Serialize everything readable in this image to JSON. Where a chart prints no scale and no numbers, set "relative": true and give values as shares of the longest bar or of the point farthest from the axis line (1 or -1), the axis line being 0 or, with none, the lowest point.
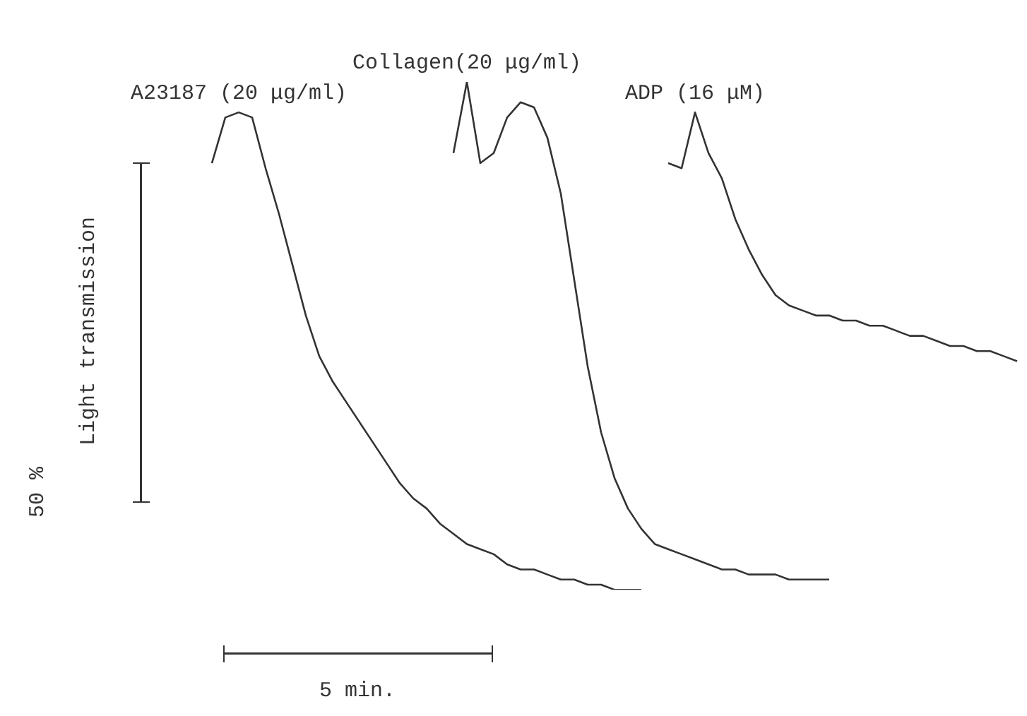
{
  "chart_data": {
    "type": "line",
    "ylabel": "Light transmission",
    "annotations": [
      "50 %",
      "5 min."
    ],
    "relative": true,
    "grid": false,
    "legend": false,
    "marker": "none",
    "line_style": "solid",
    "categories": [
      null,
      null,
      null,
      null,
      null,
      null,
      null,
      null,
      null,
      null,
      null,
      null,
      null,
      null,
      null,
      null,
      null,
      null,
      null,
      null,
      null,
      null,
      null,
      null,
      null,
      null,
      null,
      null,
      null,
      null,
      null,
      null,
      null,
      null,
      null,
      null,
      null,
      null,
      null,
      null,
      null,
      null,
      null,
      null,
      null,
      null,
      null,
      null,
      null,
      null,
      null,
      null,
      null,
      null,
      null,
      null,
      null,
      null,
      null,
      null,
      null
    ],
    "series": [
      {
        "name": "A23187 (20 μg/ml)",
        "color": "#333333",
        "values": [
          0.84,
          0.93,
          0.94,
          0.93,
          0.83,
          0.74,
          0.64,
          0.54,
          0.46,
          0.41,
          0.37,
          0.33,
          0.29,
          0.25,
          0.21,
          0.18,
          0.16,
          0.13,
          0.11,
          0.09,
          0.08,
          0.07,
          0.05,
          0.04,
          0.04,
          0.03,
          0.02,
          0.02,
          0.01,
          0.01,
          0.0,
          0.0,
          0,
          null,
          null,
          null,
          null,
          null,
          null,
          null,
          null,
          null,
          null,
          null,
          null,
          null,
          null,
          null,
          null,
          null,
          null,
          null,
          null,
          null,
          null,
          null,
          null,
          null,
          null,
          null,
          null
        ]
      },
      {
        "name": "Collagen(20 μg/ml)",
        "color": "#333333",
        "values": [
          null,
          null,
          null,
          null,
          null,
          null,
          null,
          null,
          null,
          null,
          null,
          null,
          null,
          null,
          null,
          null,
          null,
          null,
          0.86,
          1,
          0.84,
          0.86,
          0.93,
          0.96,
          0.95,
          0.89,
          0.78,
          0.61,
          0.44,
          0.31,
          0.22,
          0.16,
          0.12,
          0.09,
          0.08,
          0.07,
          0.06,
          0.05,
          0.04,
          0.04,
          0.03,
          0.03,
          0.03,
          0.02,
          0.02,
          0.02,
          0.02,
          null,
          null,
          null,
          null,
          null,
          null,
          null,
          null,
          null,
          null,
          null,
          null,
          null,
          null
        ]
      },
      {
        "name": "ADP (16 μM)",
        "color": "#333333",
        "values": [
          null,
          null,
          null,
          null,
          null,
          null,
          null,
          null,
          null,
          null,
          null,
          null,
          null,
          null,
          null,
          null,
          null,
          null,
          null,
          null,
          null,
          null,
          null,
          null,
          null,
          null,
          null,
          null,
          null,
          null,
          null,
          null,
          null,
          null,
          0.84,
          0.83,
          0.94,
          0.86,
          0.81,
          0.73,
          0.67,
          0.62,
          0.58,
          0.56,
          0.55,
          0.54,
          0.54,
          0.53,
          0.53,
          0.52,
          0.52,
          0.51,
          0.5,
          0.5,
          0.49,
          0.48,
          0.48,
          0.47,
          0.47,
          0.46,
          0.45
        ]
      }
    ]
  }
}
